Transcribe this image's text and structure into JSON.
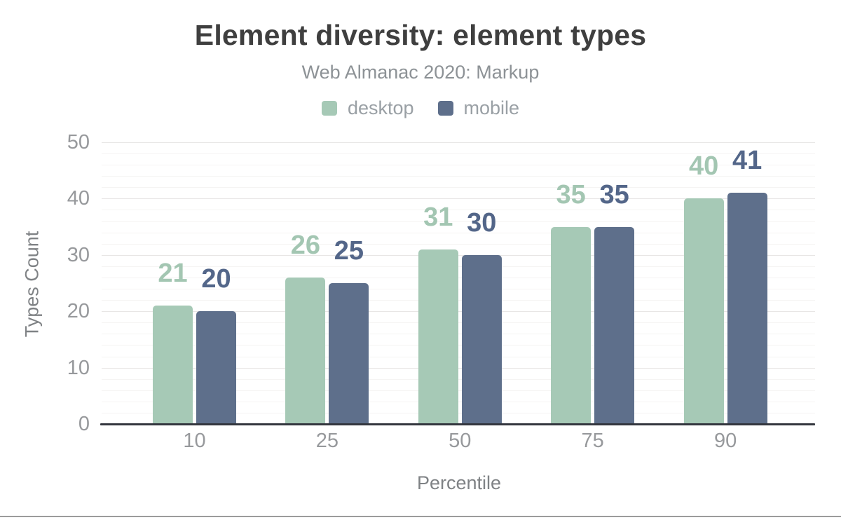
{
  "chart_data": {
    "type": "bar",
    "title": "Element diversity: element types",
    "subtitle": "Web Almanac 2020: Markup",
    "xlabel": "Percentile",
    "ylabel": "Types Count",
    "categories": [
      "10",
      "25",
      "50",
      "75",
      "90"
    ],
    "series": [
      {
        "name": "desktop",
        "color": "#a6c9b6",
        "label_color": "#a3c6b2",
        "values": [
          21,
          26,
          31,
          35,
          40
        ]
      },
      {
        "name": "mobile",
        "color": "#5e6f8b",
        "label_color": "#536689",
        "values": [
          20,
          25,
          30,
          35,
          41
        ]
      }
    ],
    "yticks": [
      0,
      10,
      20,
      30,
      40,
      50
    ],
    "ylim": [
      0,
      50
    ],
    "grid": true,
    "minor_grid_step": 2,
    "major_grid_step": 10,
    "legend_position": "top",
    "value_labels": true,
    "style": {
      "title_color": "#3f3f3f",
      "subtitle_color": "#8d9296",
      "legend_text_color": "#9aa0a5",
      "tick_text_color": "#97999c",
      "axis_title_color": "#7f8285",
      "axis_line_color": "#33363e",
      "grid_major_color": "#e8e6e5",
      "grid_minor_color": "#f5f4f3",
      "figure_border_color": "#9b9b9b",
      "background_color": "#ffffff"
    }
  }
}
